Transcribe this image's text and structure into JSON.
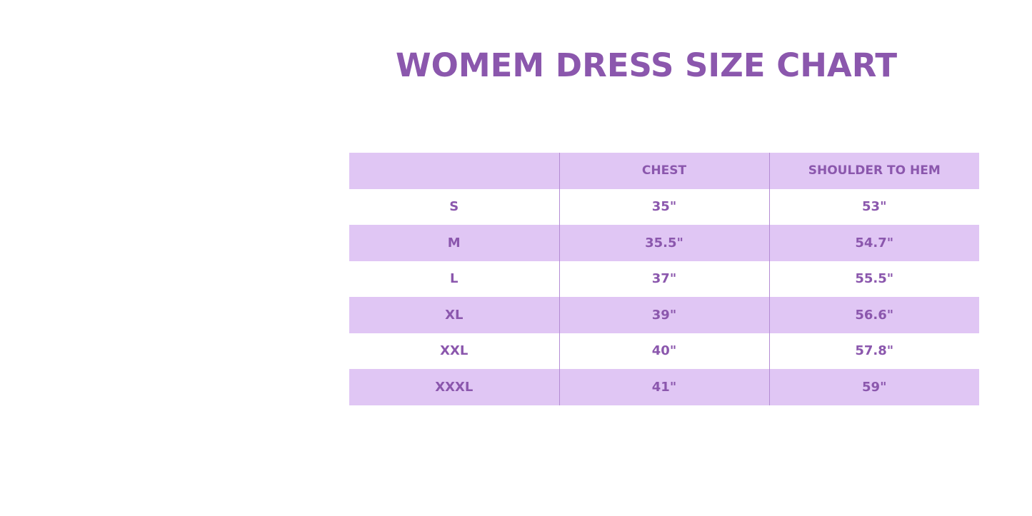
{
  "title": "WOMEM DRESS SIZE CHART",
  "colors": {
    "accent_text": "#8b57ad",
    "row_fill": "#e0c6f4",
    "divider": "#b48cd4"
  },
  "table": {
    "headers": [
      "",
      "CHEST",
      "SHOULDER TO HEM"
    ],
    "rows": [
      [
        "S",
        "35\"",
        "53\""
      ],
      [
        "M",
        "35.5\"",
        "54.7\""
      ],
      [
        "L",
        "37\"",
        "55.5\""
      ],
      [
        "XL",
        "39\"",
        "56.6\""
      ],
      [
        "XXL",
        "40\"",
        "57.8\""
      ],
      [
        "XXXL",
        "41\"",
        "59\""
      ]
    ]
  }
}
